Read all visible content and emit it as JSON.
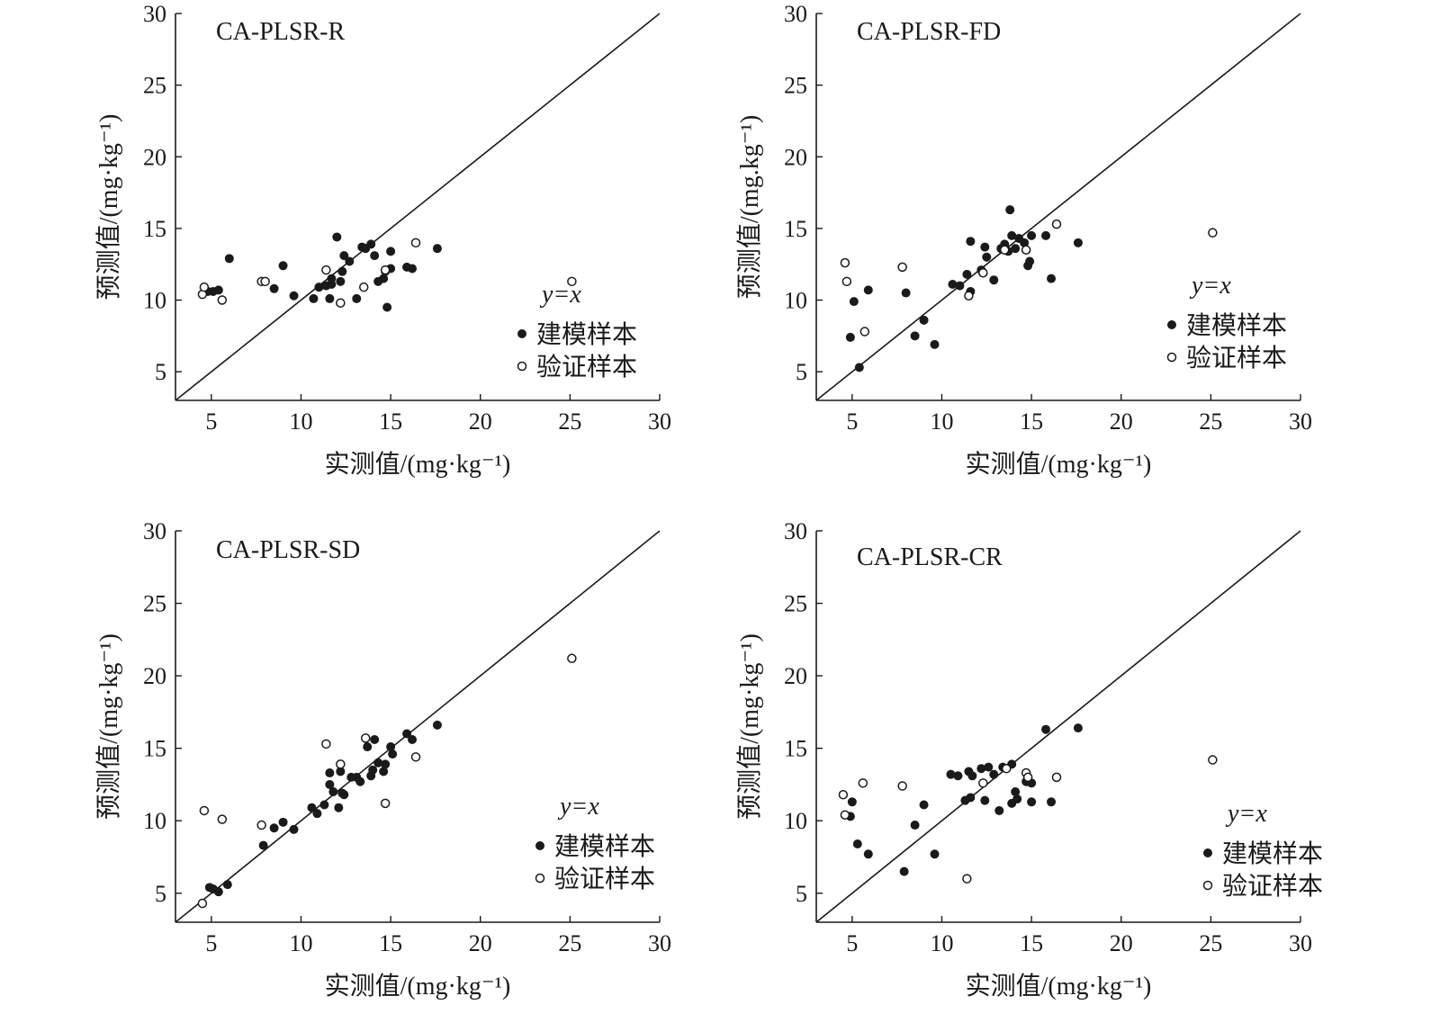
{
  "chart_data": [
    {
      "type": "scatter",
      "title": "CA-PLSR-R",
      "xlabel": "实测值/(mg·kg⁻¹)",
      "ylabel": "预测值/(mg·kg⁻¹)",
      "xlim": [
        3,
        30
      ],
      "ylim": [
        3,
        30
      ],
      "xticks": [
        5,
        10,
        15,
        20,
        25,
        30
      ],
      "yticks": [
        5,
        10,
        15,
        20,
        25,
        30
      ],
      "reference_line": "y=x",
      "legend": {
        "line": "y=x",
        "calibration": "建模样本",
        "validation": "验证样本"
      },
      "series": [
        {
          "name": "建模样本",
          "marker": "filled",
          "x": [
            4.8,
            5.1,
            5.4,
            6.0,
            8.5,
            9.0,
            9.6,
            10.7,
            11.0,
            11.4,
            11.6,
            11.7,
            11.7,
            12.0,
            12.2,
            12.3,
            12.4,
            12.7,
            13.1,
            13.4,
            13.6,
            13.9,
            14.1,
            14.3,
            14.6,
            14.7,
            14.8,
            15.0,
            15.0,
            15.9,
            16.2,
            17.6
          ],
          "y": [
            10.6,
            10.6,
            10.7,
            12.9,
            10.8,
            12.4,
            10.3,
            10.1,
            10.9,
            11.0,
            10.1,
            11.5,
            11.1,
            14.4,
            11.3,
            12.0,
            13.1,
            12.7,
            10.1,
            13.7,
            13.6,
            13.9,
            13.1,
            11.3,
            11.5,
            12.0,
            9.5,
            13.4,
            12.2,
            12.3,
            12.2,
            13.6
          ]
        },
        {
          "name": "验证样本",
          "marker": "open",
          "x": [
            4.5,
            4.6,
            5.6,
            7.8,
            8.0,
            11.4,
            12.2,
            13.5,
            14.7,
            16.4,
            25.1
          ],
          "y": [
            10.4,
            10.9,
            10.0,
            11.3,
            11.3,
            12.1,
            9.8,
            10.9,
            12.1,
            14.0,
            11.3
          ]
        }
      ]
    },
    {
      "type": "scatter",
      "title": "CA-PLSR-FD",
      "xlabel": "实测值/(mg·kg⁻¹)",
      "ylabel": "预测值/(mg.kg⁻¹)",
      "xlim": [
        3,
        30
      ],
      "ylim": [
        3,
        30
      ],
      "xticks": [
        5,
        10,
        15,
        20,
        25,
        30
      ],
      "yticks": [
        5,
        10,
        15,
        20,
        25,
        30
      ],
      "reference_line": "y=x",
      "legend": {
        "line": "y=x",
        "calibration": "建模样本",
        "validation": "验证样本"
      },
      "series": [
        {
          "name": "建模样本",
          "marker": "filled",
          "x": [
            4.9,
            5.1,
            5.4,
            5.9,
            8.0,
            8.5,
            9.0,
            9.6,
            10.6,
            11.0,
            11.4,
            11.6,
            11.6,
            12.2,
            12.4,
            12.5,
            12.9,
            13.3,
            13.5,
            13.7,
            13.8,
            13.9,
            14.1,
            14.3,
            14.6,
            14.8,
            14.9,
            15.0,
            15.8,
            16.1,
            17.6
          ],
          "y": [
            7.4,
            9.9,
            5.3,
            10.7,
            10.5,
            7.5,
            8.6,
            6.9,
            11.1,
            11.0,
            11.8,
            14.1,
            10.6,
            12.1,
            13.7,
            13.0,
            11.4,
            13.6,
            13.9,
            13.4,
            16.3,
            14.5,
            13.6,
            14.3,
            14.0,
            12.4,
            12.7,
            14.5,
            14.5,
            11.5,
            14.0
          ]
        },
        {
          "name": "验证样本",
          "marker": "open",
          "x": [
            4.6,
            4.7,
            5.7,
            7.8,
            11.5,
            12.3,
            13.5,
            14.7,
            16.4,
            25.1
          ],
          "y": [
            12.6,
            11.3,
            7.8,
            12.3,
            10.3,
            11.9,
            13.5,
            13.5,
            15.3,
            14.7
          ]
        }
      ]
    },
    {
      "type": "scatter",
      "title": "CA-PLSR-SD",
      "xlabel": "实测值/(mg·kg⁻¹)",
      "ylabel": "预测值/(mg·kg⁻¹)",
      "xlim": [
        3,
        30
      ],
      "ylim": [
        3,
        30
      ],
      "xticks": [
        5,
        10,
        15,
        20,
        25,
        30
      ],
      "yticks": [
        5,
        10,
        15,
        20,
        25,
        30
      ],
      "reference_line": "y=x",
      "legend": {
        "line": "y=x",
        "calibration": "建模样本",
        "validation": "验证样本"
      },
      "series": [
        {
          "name": "建模样本",
          "marker": "filled",
          "x": [
            4.9,
            5.1,
            5.4,
            5.9,
            7.9,
            8.5,
            9.0,
            9.6,
            10.6,
            10.9,
            11.3,
            11.6,
            11.6,
            11.8,
            12.1,
            12.2,
            12.3,
            12.4,
            12.8,
            13.1,
            13.3,
            13.7,
            13.9,
            14.0,
            14.1,
            14.3,
            14.6,
            14.7,
            15.0,
            15.1,
            15.9,
            16.2,
            17.6
          ],
          "y": [
            5.4,
            5.3,
            5.1,
            5.6,
            8.3,
            9.5,
            9.9,
            9.4,
            10.9,
            10.5,
            11.1,
            12.5,
            13.3,
            12.0,
            10.9,
            13.4,
            11.9,
            11.8,
            13.0,
            13.0,
            12.7,
            15.1,
            13.1,
            13.5,
            15.6,
            14.0,
            13.4,
            13.9,
            15.1,
            14.6,
            16.0,
            15.6,
            16.6
          ]
        },
        {
          "name": "验证样本",
          "marker": "open",
          "x": [
            4.5,
            4.6,
            5.6,
            7.8,
            11.4,
            12.2,
            13.6,
            14.7,
            16.4,
            25.1
          ],
          "y": [
            4.3,
            10.7,
            10.1,
            9.7,
            15.3,
            13.9,
            15.7,
            11.2,
            14.4,
            21.2
          ]
        }
      ]
    },
    {
      "type": "scatter",
      "title": "CA-PLSR-CR",
      "xlabel": "实测值/(mg·kg⁻¹)",
      "ylabel": "预测值/(mg·kg⁻¹)",
      "xlim": [
        3,
        30
      ],
      "ylim": [
        3,
        30
      ],
      "xticks": [
        5,
        10,
        15,
        20,
        25,
        30
      ],
      "yticks": [
        5,
        10,
        15,
        20,
        25,
        30
      ],
      "reference_line": "y=x",
      "legend": {
        "line": "y=x",
        "calibration": "建模样本",
        "validation": "验证样本"
      },
      "series": [
        {
          "name": "建模样本",
          "marker": "filled",
          "x": [
            4.9,
            5.0,
            5.3,
            5.9,
            7.9,
            8.5,
            9.0,
            9.6,
            10.5,
            10.9,
            11.3,
            11.5,
            11.6,
            11.7,
            12.2,
            12.4,
            12.6,
            12.9,
            13.2,
            13.4,
            13.9,
            13.9,
            14.1,
            14.2,
            14.7,
            15.0,
            15.0,
            15.8,
            16.1,
            17.6
          ],
          "y": [
            10.3,
            11.3,
            8.4,
            7.7,
            6.5,
            9.7,
            11.1,
            7.7,
            13.2,
            13.1,
            11.4,
            13.4,
            11.6,
            13.1,
            13.6,
            11.4,
            13.7,
            13.2,
            10.7,
            13.7,
            11.2,
            13.9,
            12.0,
            11.5,
            12.7,
            11.3,
            12.6,
            16.3,
            11.3,
            16.4
          ]
        },
        {
          "name": "验证样本",
          "marker": "open",
          "x": [
            4.5,
            4.6,
            5.6,
            7.8,
            11.4,
            12.3,
            13.6,
            14.7,
            14.8,
            16.4,
            25.1
          ],
          "y": [
            11.8,
            10.4,
            12.6,
            12.4,
            6.0,
            12.6,
            13.6,
            13.3,
            13.0,
            13.0,
            14.2
          ]
        }
      ]
    }
  ]
}
